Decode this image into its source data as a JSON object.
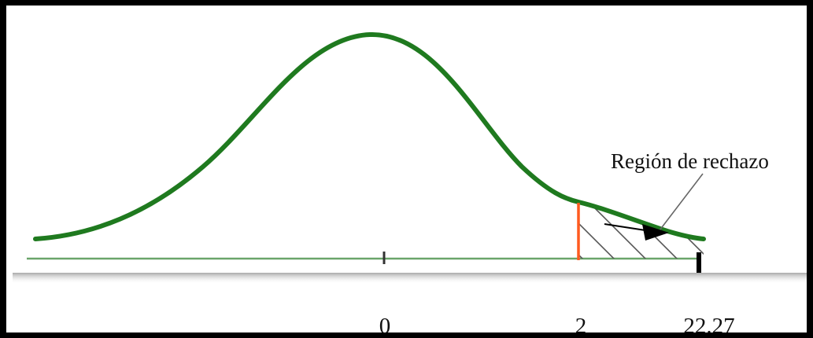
{
  "diagram": {
    "callout_label": "Región de rechazo",
    "tick_labels": {
      "zero": "0",
      "critical": "2",
      "observed": "22.27"
    },
    "colors": {
      "curve": "#1f7a1f",
      "baseline": "#6aa56a",
      "critical_line": "#ff5a1f",
      "hatch": "#555555",
      "arrow": "#000000"
    }
  }
}
